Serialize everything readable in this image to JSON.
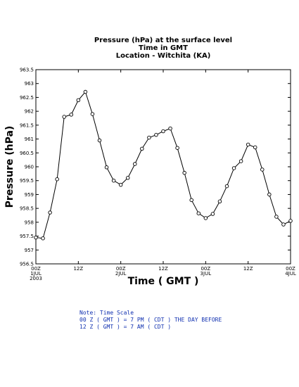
{
  "colors": {
    "line": "#000000",
    "marker_fill": "#ffffff",
    "note": "#1030b0",
    "frame": "#000000"
  },
  "chart_data": {
    "type": "line",
    "title": [
      "Pressure (hPa) at the surface level",
      "Time in GMT",
      "Location - Witchita (KA)"
    ],
    "xlabel": "Time ( GMT )",
    "ylabel": "Pressure (hPa)",
    "ylim": [
      956.5,
      963.5
    ],
    "yticks": [
      "956.5",
      "957",
      "957.5",
      "958",
      "958.5",
      "959",
      "959.5",
      "960",
      "960.5",
      "961",
      "961.5",
      "962",
      "962.5",
      "963",
      "963.5"
    ],
    "xlim": [
      0,
      72
    ],
    "xticks": [
      {
        "x": 0,
        "lines": [
          "00Z",
          "1JUL",
          "2003"
        ]
      },
      {
        "x": 12,
        "lines": [
          "12Z"
        ]
      },
      {
        "x": 24,
        "lines": [
          "00Z",
          "2JUL"
        ]
      },
      {
        "x": 36,
        "lines": [
          "12Z"
        ]
      },
      {
        "x": 48,
        "lines": [
          "00Z",
          "3JUL"
        ]
      },
      {
        "x": 60,
        "lines": [
          "12Z"
        ]
      },
      {
        "x": 72,
        "lines": [
          "00Z",
          "4JUL"
        ]
      }
    ],
    "grid": false,
    "x": [
      0,
      2,
      4,
      6,
      8,
      10,
      12,
      14,
      16,
      18,
      20,
      22,
      24,
      26,
      28,
      30,
      32,
      34,
      36,
      38,
      40,
      42,
      44,
      46,
      48,
      50,
      52,
      54,
      56,
      58,
      60,
      62,
      64,
      66,
      68,
      70,
      72
    ],
    "series": [
      {
        "values": [
          957.45,
          957.42,
          958.35,
          959.55,
          961.8,
          961.88,
          962.4,
          962.7,
          961.9,
          960.95,
          959.98,
          959.5,
          959.35,
          959.6,
          960.1,
          960.65,
          961.05,
          961.15,
          961.28,
          961.38,
          960.68,
          959.78,
          958.8,
          958.32,
          958.15,
          958.3,
          958.75,
          959.3,
          959.95,
          960.2,
          960.8,
          960.7,
          959.9,
          959.0,
          958.2,
          957.92,
          958.05
        ]
      }
    ]
  },
  "note": {
    "lines": [
      "Note: Time Scale",
      "00 Z ( GMT ) = 7 PM ( CDT ) THE DAY BEFORE",
      "12 Z ( GMT ) = 7 AM ( CDT )"
    ]
  }
}
